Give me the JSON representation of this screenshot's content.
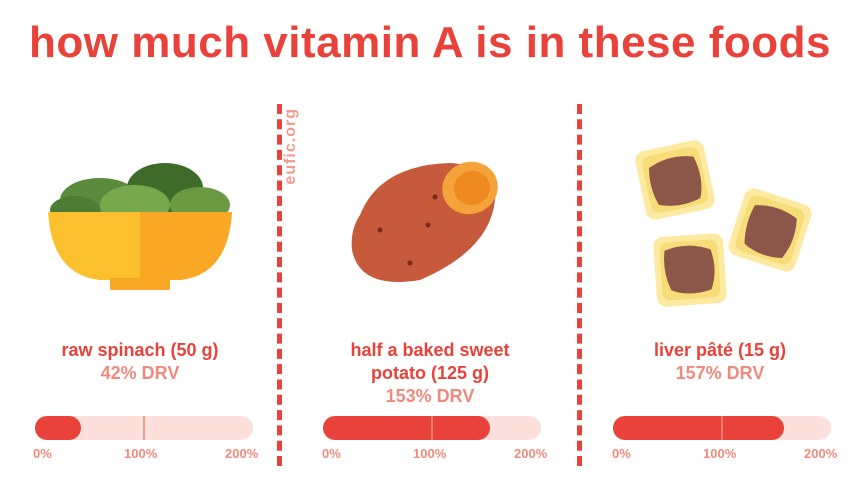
{
  "title": "how much vitamin A is in these foods",
  "watermark": "eufic.org",
  "foods": [
    {
      "name": "raw spinach (50 g)",
      "drv": "42% DRV",
      "drv_percent": 42
    },
    {
      "name_line1": "half a baked sweet",
      "name_line2": "potato (125 g)",
      "drv": "153% DRV",
      "drv_percent": 153
    },
    {
      "name": "liver pâté (15 g)",
      "drv": "157% DRV",
      "drv_percent": 157
    }
  ],
  "scale": {
    "max_percent": 200,
    "ticks": [
      "0%",
      "100%",
      "200%"
    ]
  },
  "colors": {
    "accent": "#e8423a",
    "light_accent": "#f08a7c",
    "track": "#fde0dc"
  }
}
